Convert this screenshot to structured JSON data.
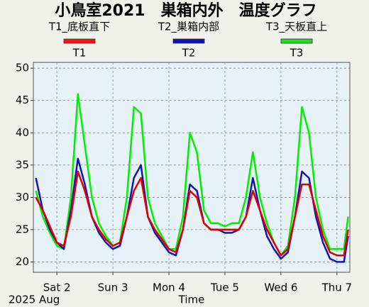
{
  "chart_data": {
    "type": "line",
    "title": "小鳥室2021　巣箱内外　温度グラフ",
    "xlabel": "Time",
    "annotation": "2025 Aug",
    "x": [
      1.625,
      1.75,
      1.875,
      2,
      2.125,
      2.25,
      2.375,
      2.5,
      2.625,
      2.75,
      2.875,
      3,
      3.125,
      3.25,
      3.375,
      3.5,
      3.625,
      3.75,
      3.875,
      4,
      4.125,
      4.25,
      4.375,
      4.5,
      4.625,
      4.75,
      4.875,
      5,
      5.125,
      5.25,
      5.375,
      5.5,
      5.625,
      5.75,
      5.875,
      6,
      6.125,
      6.25,
      6.375,
      6.5,
      6.625,
      6.75,
      6.875,
      7,
      7.125,
      7.2
    ],
    "series": [
      {
        "name": "T1",
        "description": "T1_底板直下",
        "color": "#e00000",
        "legend_color": "#ff1010",
        "values": [
          30,
          28,
          25.5,
          23,
          22.5,
          27,
          34,
          31,
          27,
          25,
          23.5,
          22.5,
          23,
          27,
          31,
          33,
          27,
          25,
          23.5,
          22,
          21.5,
          25,
          31,
          30,
          26,
          25,
          25,
          25,
          25,
          25,
          27,
          31,
          28,
          25,
          23,
          21,
          22,
          27,
          32,
          32,
          28,
          24,
          21.5,
          21,
          21,
          25
        ]
      },
      {
        "name": "T2",
        "description": "T2_巣箱内部",
        "color": "#1414b4",
        "legend_color": "#1010b0",
        "values": [
          33,
          28,
          25,
          23,
          22,
          28,
          36,
          32,
          27,
          24.5,
          23,
          22,
          22.5,
          27,
          33,
          35,
          27,
          24.5,
          23,
          21.5,
          21,
          25,
          32,
          31,
          26,
          25,
          25,
          24.5,
          24.5,
          25,
          27,
          33,
          28,
          24,
          22,
          20.5,
          21.5,
          27,
          34,
          33,
          27,
          23,
          20.5,
          20,
          20,
          24
        ]
      },
      {
        "name": "T3",
        "description": "T3_天板直上",
        "color": "#00ee00",
        "legend_color": "#22dd22",
        "values": [
          31,
          27,
          24.5,
          22.5,
          22,
          30,
          46,
          38,
          30,
          26,
          24,
          22.5,
          23,
          30,
          44,
          43,
          30,
          26,
          24,
          22,
          22,
          27,
          40,
          37,
          28,
          26,
          26,
          25.5,
          26,
          26,
          30,
          37,
          30,
          26,
          23,
          21,
          22.5,
          30,
          44,
          40,
          30,
          25,
          22,
          22,
          22,
          27
        ]
      }
    ],
    "xlim": [
      1.58,
      7.23
    ],
    "xticks": [
      {
        "value": 2,
        "label": "Sat 2"
      },
      {
        "value": 3,
        "label": "Sun 3"
      },
      {
        "value": 4,
        "label": "Mon 4"
      },
      {
        "value": 5,
        "label": "Tue 5"
      },
      {
        "value": 6,
        "label": "Wed 6"
      },
      {
        "value": 7,
        "label": "Thu 7"
      }
    ],
    "ylim": [
      18.4,
      50.9
    ],
    "yticks": [
      20,
      25,
      30,
      35,
      40,
      45,
      50
    ],
    "grid": true
  }
}
